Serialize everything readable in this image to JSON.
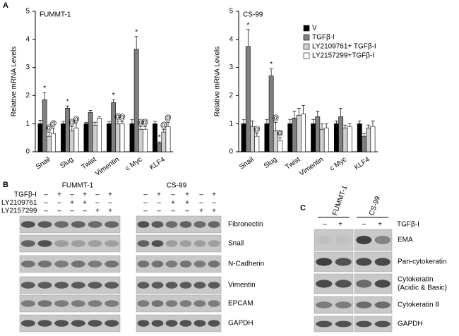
{
  "panel_a_label": "A",
  "chart_data": [
    {
      "type": "bar",
      "title": "FUMMT-1",
      "y_label": "Relative mRNA Levels",
      "categories": [
        "Snail",
        "Slug",
        "Twist",
        "Vimentin",
        "c Myc",
        "KLF4"
      ],
      "ylim": [
        0,
        5
      ],
      "yticks": [
        0,
        1,
        2,
        3,
        4,
        5
      ],
      "legend": false,
      "series": [
        {
          "color": "#000000",
          "values": [
            1.0,
            1.0,
            1.0,
            1.0,
            1.0,
            1.0
          ],
          "errors": [
            0.12,
            0.08,
            0.05,
            0.08,
            0.15,
            0.08
          ],
          "annotations": [
            null,
            null,
            null,
            null,
            null,
            null
          ]
        },
        {
          "color": "#808080",
          "values": [
            1.85,
            1.55,
            1.4,
            1.75,
            3.65,
            0.3
          ],
          "errors": [
            0.25,
            0.08,
            0.07,
            0.1,
            0.45,
            0.05
          ],
          "annotations": [
            "*",
            "*",
            null,
            "*",
            "*",
            "*"
          ]
        },
        {
          "color": "#d0d0d0",
          "values": [
            0.55,
            0.75,
            0.95,
            1.0,
            0.8,
            0.7
          ],
          "errors": [
            0.15,
            0.15,
            0.1,
            0.1,
            0.1,
            0.1
          ],
          "annotations": [
            "@",
            "@",
            null,
            "@",
            "@",
            "@"
          ]
        },
        {
          "color": "#ffffff",
          "values": [
            0.65,
            0.85,
            1.2,
            1.0,
            0.8,
            0.9
          ],
          "errors": [
            0.2,
            0.15,
            0.05,
            0.07,
            0.1,
            0.15
          ],
          "annotations": [
            "@",
            "@",
            null,
            "@",
            "@",
            "@"
          ]
        }
      ]
    },
    {
      "type": "bar",
      "title": "CS-99",
      "y_label": "Relative mRNA Levels",
      "categories": [
        "Snail",
        "Slug",
        "Twist",
        "Vimentin",
        "c Myc",
        "KLF4"
      ],
      "ylim": [
        0,
        5
      ],
      "yticks": [
        0,
        1,
        2,
        3,
        4,
        5
      ],
      "legend": "upper right",
      "series": [
        {
          "name": "V",
          "color": "#000000",
          "values": [
            1.0,
            1.0,
            1.0,
            1.0,
            1.0,
            1.0
          ],
          "errors": [
            0.15,
            0.15,
            0.15,
            0.15,
            0.1,
            0.1
          ],
          "annotations": [
            null,
            null,
            null,
            null,
            null,
            null
          ]
        },
        {
          "name": "TGFβ-I",
          "color": "#808080",
          "values": [
            3.75,
            2.7,
            1.2,
            1.25,
            1.25,
            0.55
          ],
          "errors": [
            0.6,
            0.25,
            0.25,
            0.2,
            0.3,
            0.1
          ],
          "annotations": [
            "*",
            "*",
            null,
            null,
            null,
            null
          ]
        },
        {
          "name": "LY2109761+ TGFβ-I",
          "color": "#d0d0d0",
          "values": [
            0.9,
            0.75,
            1.3,
            0.8,
            0.85,
            0.85
          ],
          "errors": [
            0.2,
            0.3,
            0.25,
            0.2,
            0.1,
            0.1
          ],
          "annotations": [
            null,
            "@",
            null,
            null,
            null,
            null
          ]
        },
        {
          "name": "LY2157299+TGFβ-I",
          "color": "#ffffff",
          "values": [
            0.55,
            0.4,
            1.35,
            0.85,
            0.9,
            0.9
          ],
          "errors": [
            0.1,
            0.1,
            0.3,
            0.15,
            0.1,
            0.2
          ],
          "annotations": [
            "@",
            "@",
            null,
            null,
            null,
            null
          ]
        }
      ]
    }
  ],
  "panel_b": {
    "label": "B",
    "cell_lines": [
      "FUMMT-1",
      "CS-99"
    ],
    "treatments": [
      {
        "name": "TGFβ-I",
        "signs": [
          "–",
          "+",
          "–",
          "+",
          "–",
          "+"
        ]
      },
      {
        "name": "LY2109761",
        "signs": [
          "–",
          "–",
          "+",
          "+",
          "–",
          "–"
        ]
      },
      {
        "name": "LY2157299",
        "signs": [
          "–",
          "–",
          "–",
          "–",
          "+",
          "+"
        ]
      }
    ],
    "proteins": [
      "Fibronectin",
      "Snail",
      "N-Cadherin",
      "Vimentin",
      "EPCAM",
      "GAPDH"
    ]
  },
  "panel_c": {
    "label": "C",
    "cell_lines": [
      "FUMMT-1",
      "CS-99"
    ],
    "treatment": "TGFβ-I",
    "signs": [
      "–",
      "+",
      "–",
      "+"
    ],
    "proteins": [
      "EMA",
      "Pan-cytokeratin",
      [
        "Cytokeratin",
        "(Acidic & Basic)"
      ],
      "Cytokeratin 8",
      "GAPDH"
    ]
  }
}
